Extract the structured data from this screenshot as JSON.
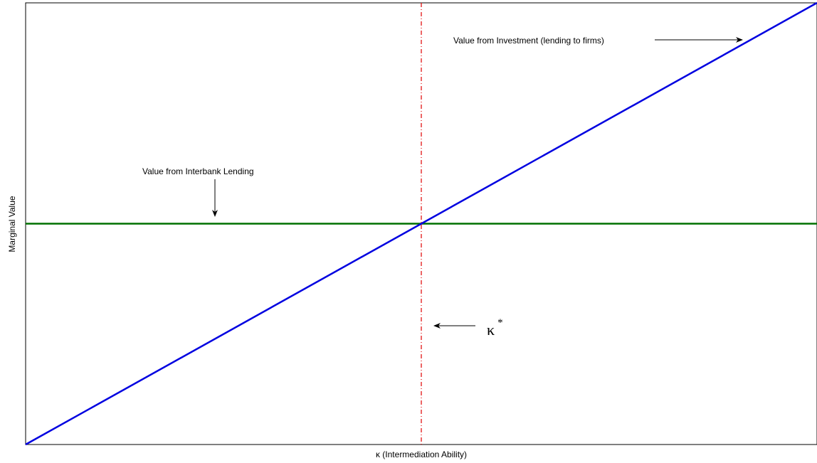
{
  "chart_data": {
    "type": "line",
    "title": "",
    "xlabel": "κ (Intermediation Ability)",
    "ylabel": "Marginal Value",
    "xlim": [
      0,
      1
    ],
    "ylim": [
      0,
      1
    ],
    "grid": false,
    "ticks": "none",
    "series": [
      {
        "label": "Value from Investment (lending to firms)",
        "color": "#0000e0",
        "x": [
          0,
          1
        ],
        "y": [
          0,
          1
        ]
      },
      {
        "label": "Value from Interbank Lending",
        "color": "#007000",
        "x": [
          0,
          1
        ],
        "y": [
          0.5,
          0.5
        ]
      }
    ],
    "threshold": {
      "symbol": "κ",
      "superscript": "*",
      "x": 0.5,
      "color": "#e00000",
      "style": "dash-dot"
    },
    "annotations": [
      {
        "text": "Value from Investment (lending to firms)",
        "target_series": "Value from Investment (lending to firms)"
      },
      {
        "text": "Value from Interbank Lending",
        "target_series": "Value from Interbank Lending"
      },
      {
        "text": "κ",
        "superscript": "*",
        "target": "threshold"
      }
    ]
  }
}
